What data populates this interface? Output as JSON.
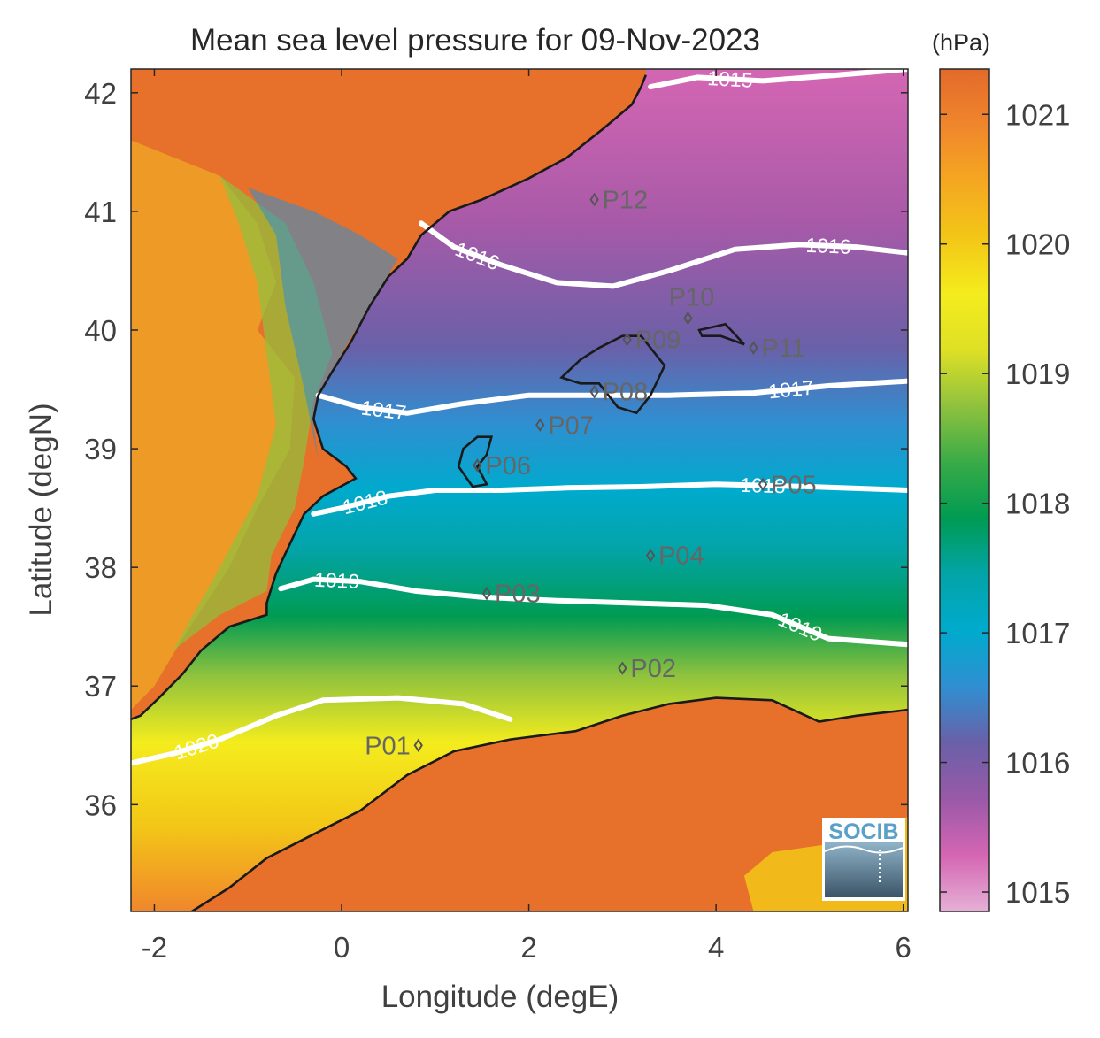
{
  "title": "Mean sea level pressure for 09-Nov-2023",
  "xlabel": "Longitude (degE)",
  "ylabel": "Latitude (degN)",
  "colorbar": {
    "unit": "(hPa)",
    "range": [
      1014.85,
      1021.35
    ],
    "ticks": [
      "1015",
      "1016",
      "1017",
      "1018",
      "1019",
      "1020",
      "1021"
    ],
    "colormap": [
      "#e6b0d6",
      "#d466b3",
      "#9a59a8",
      "#6a60a8",
      "#2f8fd1",
      "#00aacd",
      "#03a4a8",
      "#009b52",
      "#39ab47",
      "#8fc23e",
      "#dfe025",
      "#f4ec1d",
      "#f3c617",
      "#f4a721",
      "#f0862c",
      "#e26a2b"
    ]
  },
  "axes": {
    "xlim": [
      -2.25,
      6.05
    ],
    "ylim": [
      35.1,
      42.2
    ],
    "xticks": [
      "-2",
      "0",
      "2",
      "4",
      "6"
    ],
    "yticks": [
      "36",
      "37",
      "38",
      "39",
      "40",
      "41",
      "42"
    ]
  },
  "contours": [
    {
      "level": "1015",
      "label": "1015",
      "points": [
        [
          3.3,
          42.05
        ],
        [
          3.8,
          42.13
        ],
        [
          4.5,
          42.1
        ],
        [
          5.3,
          42.15
        ],
        [
          6.05,
          42.2
        ]
      ]
    },
    {
      "level": "1016",
      "label": "1016",
      "label2": "1016",
      "points": [
        [
          0.85,
          40.9
        ],
        [
          1.2,
          40.7
        ],
        [
          1.7,
          40.55
        ],
        [
          2.3,
          40.4
        ],
        [
          2.9,
          40.37
        ],
        [
          3.5,
          40.5
        ],
        [
          4.2,
          40.68
        ],
        [
          4.9,
          40.72
        ],
        [
          5.5,
          40.7
        ],
        [
          6.05,
          40.65
        ]
      ]
    },
    {
      "level": "1017",
      "label": "1017",
      "label2": "1017",
      "points": [
        [
          -0.25,
          39.45
        ],
        [
          0.2,
          39.35
        ],
        [
          0.7,
          39.3
        ],
        [
          1.3,
          39.38
        ],
        [
          2.0,
          39.45
        ],
        [
          2.7,
          39.45
        ],
        [
          3.5,
          39.45
        ],
        [
          4.4,
          39.47
        ],
        [
          5.2,
          39.53
        ],
        [
          6.05,
          39.57
        ]
      ]
    },
    {
      "level": "1018",
      "label": "1018",
      "label2": "1018",
      "points": [
        [
          -0.3,
          38.45
        ],
        [
          0,
          38.5
        ],
        [
          0.5,
          38.6
        ],
        [
          1.0,
          38.65
        ],
        [
          1.7,
          38.65
        ],
        [
          2.4,
          38.67
        ],
        [
          3.2,
          38.68
        ],
        [
          4.0,
          38.7
        ],
        [
          5.0,
          38.68
        ],
        [
          6.05,
          38.65
        ]
      ]
    },
    {
      "level": "1019",
      "label": "1019",
      "label2": "1019",
      "points": [
        [
          -0.65,
          37.82
        ],
        [
          -0.3,
          37.9
        ],
        [
          0.2,
          37.88
        ],
        [
          0.8,
          37.8
        ],
        [
          1.5,
          37.75
        ],
        [
          2.3,
          37.72
        ],
        [
          3.1,
          37.7
        ],
        [
          3.9,
          37.68
        ],
        [
          4.6,
          37.6
        ],
        [
          5.2,
          37.4
        ],
        [
          6.05,
          37.35
        ]
      ]
    },
    {
      "level": "1020",
      "label": "1020",
      "points": [
        [
          -2.25,
          36.35
        ],
        [
          -1.8,
          36.43
        ],
        [
          -1.3,
          36.55
        ],
        [
          -0.7,
          36.75
        ],
        [
          -0.2,
          36.88
        ],
        [
          0.6,
          36.9
        ],
        [
          1.3,
          36.85
        ],
        [
          1.8,
          36.72
        ]
      ]
    }
  ],
  "coastline": [
    [
      [
        3.25,
        42.15
      ],
      [
        3.2,
        42.05
      ],
      [
        3.1,
        41.9
      ],
      [
        2.8,
        41.7
      ],
      [
        2.4,
        41.45
      ],
      [
        2.0,
        41.28
      ],
      [
        1.5,
        41.1
      ],
      [
        1.15,
        41.0
      ],
      [
        0.85,
        40.8
      ],
      [
        0.7,
        40.6
      ],
      [
        0.5,
        40.45
      ],
      [
        0.3,
        40.2
      ],
      [
        0.1,
        39.9
      ],
      [
        -0.1,
        39.65
      ],
      [
        -0.25,
        39.45
      ],
      [
        -0.3,
        39.25
      ],
      [
        -0.2,
        39.0
      ],
      [
        0.05,
        38.85
      ],
      [
        0.15,
        38.75
      ],
      [
        -0.2,
        38.6
      ],
      [
        -0.4,
        38.45
      ],
      [
        -0.55,
        38.2
      ],
      [
        -0.7,
        37.95
      ],
      [
        -0.8,
        37.7
      ],
      [
        -0.8,
        37.6
      ],
      [
        -1.2,
        37.5
      ],
      [
        -1.5,
        37.3
      ],
      [
        -1.7,
        37.1
      ],
      [
        -1.95,
        36.9
      ],
      [
        -2.15,
        36.75
      ],
      [
        -2.25,
        36.72
      ]
    ],
    [
      [
        -1.6,
        35.1
      ],
      [
        -1.2,
        35.3
      ],
      [
        -0.8,
        35.55
      ],
      [
        -0.3,
        35.75
      ],
      [
        0.2,
        35.95
      ],
      [
        0.7,
        36.25
      ],
      [
        1.2,
        36.45
      ],
      [
        1.8,
        36.55
      ],
      [
        2.5,
        36.62
      ],
      [
        3.0,
        36.75
      ],
      [
        3.5,
        36.85
      ],
      [
        4.0,
        36.9
      ],
      [
        4.6,
        36.88
      ],
      [
        5.1,
        36.7
      ],
      [
        5.5,
        36.75
      ],
      [
        6.05,
        36.8
      ]
    ]
  ],
  "islands": [
    [
      [
        2.35,
        39.6
      ],
      [
        2.55,
        39.75
      ],
      [
        2.75,
        39.85
      ],
      [
        3.0,
        39.95
      ],
      [
        3.2,
        39.95
      ],
      [
        3.45,
        39.7
      ],
      [
        3.3,
        39.45
      ],
      [
        3.15,
        39.3
      ],
      [
        2.95,
        39.35
      ],
      [
        2.75,
        39.55
      ],
      [
        2.55,
        39.55
      ]
    ],
    [
      [
        3.82,
        40.0
      ],
      [
        4.1,
        40.05
      ],
      [
        4.3,
        39.88
      ],
      [
        4.05,
        39.95
      ],
      [
        3.85,
        39.95
      ]
    ],
    [
      [
        1.25,
        38.85
      ],
      [
        1.3,
        39.0
      ],
      [
        1.45,
        39.1
      ],
      [
        1.6,
        39.1
      ],
      [
        1.55,
        38.95
      ],
      [
        1.45,
        38.85
      ],
      [
        1.55,
        38.7
      ],
      [
        1.4,
        38.68
      ]
    ]
  ],
  "points": [
    {
      "name": "P01",
      "lon": 0.82,
      "lat": 36.5,
      "label_side": "left"
    },
    {
      "name": "P02",
      "lon": 3.0,
      "lat": 37.15,
      "label_side": "right"
    },
    {
      "name": "P03",
      "lon": 1.55,
      "lat": 37.78,
      "label_side": "right"
    },
    {
      "name": "P04",
      "lon": 3.3,
      "lat": 38.1,
      "label_side": "right"
    },
    {
      "name": "P05",
      "lon": 4.5,
      "lat": 38.7,
      "label_side": "right"
    },
    {
      "name": "P06",
      "lon": 1.45,
      "lat": 38.86,
      "label_side": "right"
    },
    {
      "name": "P07",
      "lon": 2.12,
      "lat": 39.2,
      "label_side": "right"
    },
    {
      "name": "P08",
      "lon": 2.7,
      "lat": 39.48,
      "label_side": "right"
    },
    {
      "name": "P09",
      "lon": 3.05,
      "lat": 39.92,
      "label_side": "right"
    },
    {
      "name": "P10",
      "lon": 3.7,
      "lat": 40.1,
      "label_side": "above"
    },
    {
      "name": "P11",
      "lon": 4.4,
      "lat": 39.85,
      "label_side": "right"
    },
    {
      "name": "P12",
      "lon": 2.7,
      "lat": 41.1,
      "label_side": "right"
    }
  ],
  "logo": {
    "text": "SOCIB"
  }
}
